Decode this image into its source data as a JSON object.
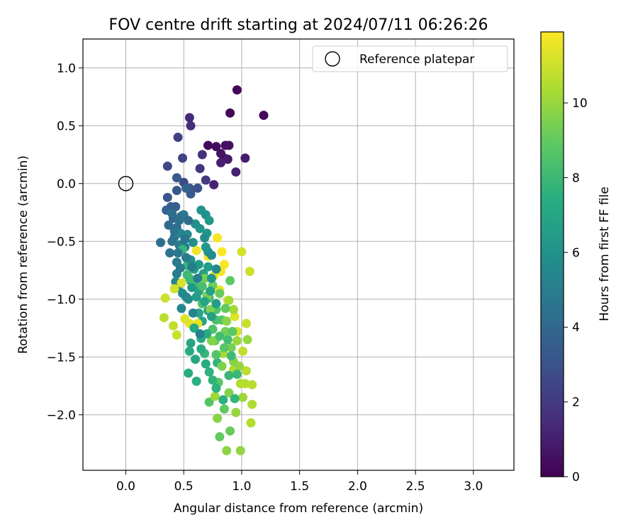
{
  "chart_data": {
    "type": "scatter",
    "title": "FOV centre drift starting at 2024/07/11 06:26:26",
    "xlabel": "Angular distance from reference (arcmin)",
    "ylabel": "Rotation from reference (arcmin)",
    "xlim": [
      -0.37,
      3.35
    ],
    "ylim": [
      -2.48,
      1.25
    ],
    "xticks": [
      0.0,
      0.5,
      1.0,
      1.5,
      2.0,
      2.5,
      3.0
    ],
    "xtick_labels": [
      "0.0",
      "0.5",
      "1.0",
      "1.5",
      "2.0",
      "2.5",
      "3.0"
    ],
    "yticks": [
      1.0,
      0.5,
      0.0,
      -0.5,
      -1.0,
      -1.5,
      -2.0
    ],
    "ytick_labels": [
      "1.0",
      "0.5",
      "0.0",
      "−0.5",
      "−1.0",
      "−1.5",
      "−2.0"
    ],
    "grid": true,
    "legend": {
      "position": "top-right",
      "label": "Reference platepar",
      "marker": "open-circle"
    },
    "colorbar": {
      "label": "Hours from first FF file",
      "range": [
        0,
        11.9
      ],
      "ticks": [
        0,
        2,
        4,
        6,
        8,
        10
      ],
      "tick_labels": [
        "0",
        "2",
        "4",
        "6",
        "8",
        "10"
      ],
      "colormap": "viridis"
    },
    "reference": {
      "x": 0.0,
      "y": 0.0
    },
    "series": [
      {
        "points": [
          [
            0.96,
            0.81,
            0.1
          ],
          [
            0.9,
            0.61,
            0.2
          ],
          [
            1.19,
            0.59,
            0.2
          ],
          [
            0.71,
            0.33,
            0.3
          ],
          [
            0.78,
            0.32,
            0.4
          ],
          [
            0.86,
            0.33,
            0.5
          ],
          [
            0.89,
            0.33,
            0.5
          ],
          [
            0.82,
            0.26,
            0.6
          ],
          [
            0.85,
            0.22,
            0.7
          ],
          [
            0.88,
            0.21,
            0.8
          ],
          [
            1.03,
            0.22,
            0.9
          ],
          [
            0.82,
            0.18,
            1.0
          ],
          [
            0.95,
            0.1,
            1.1
          ],
          [
            0.76,
            -0.01,
            1.2
          ],
          [
            0.55,
            0.57,
            1.4
          ],
          [
            0.56,
            0.5,
            1.5
          ],
          [
            0.66,
            0.25,
            1.6
          ],
          [
            0.64,
            0.13,
            1.8
          ],
          [
            0.69,
            0.03,
            2.0
          ],
          [
            0.45,
            0.4,
            2.2
          ],
          [
            0.49,
            0.22,
            2.4
          ],
          [
            0.36,
            0.15,
            2.5
          ],
          [
            0.5,
            0.01,
            2.7
          ],
          [
            0.62,
            -0.04,
            2.9
          ],
          [
            0.55,
            -0.04,
            3.0
          ],
          [
            0.36,
            -0.12,
            3.1
          ],
          [
            0.44,
            -0.06,
            3.2
          ],
          [
            0.56,
            -0.09,
            3.3
          ],
          [
            0.44,
            0.05,
            3.4
          ],
          [
            0.39,
            -0.2,
            3.5
          ],
          [
            0.43,
            -0.2,
            3.6
          ],
          [
            0.52,
            -0.04,
            3.7
          ],
          [
            0.35,
            -0.23,
            3.8
          ],
          [
            0.41,
            -0.3,
            3.9
          ],
          [
            0.48,
            -0.28,
            4.0
          ],
          [
            0.37,
            -0.36,
            4.1
          ],
          [
            0.44,
            -0.38,
            4.2
          ],
          [
            0.3,
            -0.51,
            4.3
          ],
          [
            0.4,
            -0.5,
            4.4
          ],
          [
            0.38,
            -0.6,
            4.5
          ],
          [
            0.42,
            -0.46,
            4.6
          ],
          [
            0.5,
            -0.27,
            4.7
          ],
          [
            0.44,
            -0.68,
            4.8
          ],
          [
            0.46,
            -0.53,
            4.9
          ],
          [
            0.51,
            -0.55,
            5.0
          ],
          [
            0.44,
            -0.78,
            5.1
          ],
          [
            0.45,
            -0.9,
            5.2
          ],
          [
            0.43,
            -0.85,
            5.3
          ],
          [
            0.47,
            -0.43,
            5.4
          ],
          [
            0.53,
            -0.44,
            5.5
          ],
          [
            0.56,
            -0.84,
            5.6
          ],
          [
            0.49,
            -0.95,
            5.7
          ],
          [
            0.54,
            -1.0,
            5.8
          ],
          [
            0.58,
            -0.51,
            5.9
          ],
          [
            0.65,
            -0.23,
            6.0
          ],
          [
            0.69,
            -0.27,
            6.0
          ],
          [
            0.64,
            -0.39,
            6.1
          ],
          [
            0.7,
            -0.43,
            6.2
          ],
          [
            0.72,
            -0.32,
            6.3
          ],
          [
            0.69,
            -0.55,
            6.4
          ],
          [
            0.59,
            -0.74,
            6.5
          ],
          [
            0.67,
            -0.78,
            6.6
          ],
          [
            0.71,
            -0.72,
            6.6
          ],
          [
            0.63,
            -0.93,
            6.7
          ],
          [
            0.71,
            -1.1,
            6.8
          ],
          [
            0.66,
            -1.19,
            6.9
          ],
          [
            0.56,
            -1.38,
            7.0
          ],
          [
            0.6,
            -1.52,
            7.1
          ],
          [
            0.65,
            -1.34,
            7.2
          ],
          [
            0.55,
            -1.45,
            7.3
          ],
          [
            0.54,
            -1.64,
            7.4
          ],
          [
            0.61,
            -1.71,
            7.5
          ],
          [
            0.72,
            -1.63,
            7.6
          ],
          [
            0.79,
            -1.55,
            7.7
          ],
          [
            0.68,
            -1.47,
            7.8
          ],
          [
            0.49,
            -0.57,
            7.8
          ],
          [
            0.53,
            -0.71,
            7.9
          ],
          [
            0.53,
            -0.79,
            8.0
          ],
          [
            0.55,
            -0.82,
            8.1
          ],
          [
            0.59,
            -0.87,
            8.2
          ],
          [
            0.66,
            -0.89,
            8.3
          ],
          [
            0.72,
            -0.99,
            8.4
          ],
          [
            0.66,
            -1.04,
            8.5
          ],
          [
            0.78,
            -1.09,
            8.5
          ],
          [
            0.83,
            -1.18,
            8.6
          ],
          [
            0.72,
            -1.89,
            8.7
          ],
          [
            0.8,
            -1.72,
            8.8
          ],
          [
            0.85,
            -1.95,
            8.9
          ],
          [
            0.81,
            -2.19,
            9.0
          ],
          [
            0.9,
            -2.14,
            9.1
          ],
          [
            0.77,
            -1.36,
            9.2
          ],
          [
            0.86,
            -1.28,
            9.3
          ],
          [
            0.91,
            -1.42,
            9.4
          ],
          [
            0.83,
            -1.58,
            9.5
          ],
          [
            0.89,
            -1.81,
            9.6
          ],
          [
            0.79,
            -2.03,
            9.7
          ],
          [
            0.87,
            -2.31,
            9.8
          ],
          [
            0.99,
            -2.31,
            9.9
          ],
          [
            0.95,
            -1.98,
            10.0
          ],
          [
            1.01,
            -1.85,
            10.1
          ],
          [
            0.77,
            -1.84,
            10.2
          ],
          [
            0.84,
            -1.47,
            10.3
          ],
          [
            0.93,
            -1.61,
            10.4
          ],
          [
            0.99,
            -1.73,
            10.5
          ],
          [
            1.03,
            -1.73,
            10.6
          ],
          [
            0.33,
            -1.16,
            10.7
          ],
          [
            0.41,
            -1.23,
            10.8
          ],
          [
            0.44,
            -1.31,
            10.9
          ],
          [
            0.34,
            -0.99,
            11.0
          ],
          [
            0.42,
            -0.91,
            11.1
          ],
          [
            0.48,
            -0.86,
            11.2
          ],
          [
            0.51,
            -1.17,
            11.3
          ],
          [
            0.55,
            -1.21,
            11.4
          ],
          [
            0.62,
            -1.21,
            11.5
          ],
          [
            0.61,
            -0.58,
            11.6
          ],
          [
            0.71,
            -0.63,
            11.7
          ],
          [
            0.79,
            -0.47,
            11.8
          ],
          [
            0.83,
            -0.59,
            11.9
          ],
          [
            0.85,
            -0.7,
            11.8
          ],
          [
            0.82,
            -0.76,
            11.7
          ],
          [
            0.76,
            -0.8,
            11.6
          ],
          [
            0.81,
            -0.92,
            11.5
          ],
          [
            0.88,
            -1.01,
            11.4
          ],
          [
            0.94,
            -1.15,
            11.3
          ],
          [
            0.96,
            -1.28,
            11.2
          ],
          [
            1.0,
            -0.59,
            11.1
          ],
          [
            1.07,
            -0.76,
            11.0
          ],
          [
            1.04,
            -1.21,
            10.9
          ],
          [
            1.01,
            -1.45,
            10.8
          ],
          [
            1.04,
            -1.62,
            10.7
          ],
          [
            1.09,
            -1.74,
            10.6
          ],
          [
            1.08,
            -2.07,
            10.5
          ],
          [
            1.09,
            -1.91,
            10.4
          ],
          [
            0.89,
            -1.01,
            10.3
          ],
          [
            0.93,
            -1.09,
            10.2
          ],
          [
            0.96,
            -1.36,
            10.1
          ],
          [
            1.05,
            -1.35,
            10.0
          ],
          [
            0.98,
            -1.58,
            9.9
          ],
          [
            0.87,
            -1.19,
            9.8
          ],
          [
            0.93,
            -1.54,
            9.7
          ],
          [
            0.74,
            -1.36,
            9.6
          ],
          [
            0.73,
            -1.09,
            9.5
          ],
          [
            0.7,
            -0.97,
            9.4
          ],
          [
            0.68,
            -0.82,
            9.3
          ],
          [
            0.75,
            -0.88,
            9.2
          ],
          [
            0.81,
            -0.95,
            9.1
          ],
          [
            0.86,
            -1.08,
            9.0
          ],
          [
            0.9,
            -0.84,
            8.9
          ],
          [
            0.92,
            -1.28,
            8.8
          ],
          [
            0.85,
            -1.42,
            8.7
          ],
          [
            0.78,
            -1.48,
            8.6
          ],
          [
            0.75,
            -1.26,
            8.5
          ],
          [
            0.78,
            -1.18,
            8.4
          ],
          [
            0.81,
            -1.32,
            8.3
          ],
          [
            0.88,
            -1.35,
            8.2
          ],
          [
            0.91,
            -1.49,
            8.1
          ],
          [
            0.96,
            -1.65,
            8.0
          ],
          [
            0.89,
            -1.66,
            7.9
          ],
          [
            0.94,
            -1.86,
            7.8
          ],
          [
            0.75,
            -1.7,
            7.7
          ],
          [
            0.78,
            -1.77,
            7.6
          ],
          [
            0.84,
            -1.87,
            7.5
          ],
          [
            0.69,
            -1.56,
            7.4
          ],
          [
            0.65,
            -1.43,
            7.3
          ],
          [
            0.7,
            -1.3,
            7.2
          ],
          [
            0.59,
            -1.25,
            7.1
          ],
          [
            0.63,
            -1.12,
            7.0
          ],
          [
            0.68,
            -1.02,
            6.9
          ],
          [
            0.73,
            -0.93,
            6.8
          ],
          [
            0.74,
            -1.15,
            6.7
          ],
          [
            0.78,
            -1.04,
            6.6
          ],
          [
            0.61,
            -0.98,
            6.5
          ],
          [
            0.57,
            -0.9,
            6.4
          ],
          [
            0.63,
            -0.7,
            6.3
          ],
          [
            0.74,
            -0.82,
            6.2
          ],
          [
            0.71,
            -0.59,
            6.1
          ],
          [
            0.56,
            -0.66,
            6.0
          ],
          [
            0.6,
            -0.35,
            5.9
          ],
          [
            0.68,
            -0.47,
            5.8
          ],
          [
            0.74,
            -0.62,
            5.7
          ],
          [
            0.78,
            -0.74,
            5.6
          ],
          [
            0.52,
            -0.98,
            5.5
          ],
          [
            0.48,
            -1.08,
            5.4
          ],
          [
            0.58,
            -1.12,
            5.3
          ],
          [
            0.64,
            -1.3,
            5.2
          ],
          [
            0.62,
            -0.82,
            5.1
          ],
          [
            0.57,
            -0.72,
            5.0
          ],
          [
            0.52,
            -0.64,
            4.9
          ],
          [
            0.47,
            -0.73,
            4.8
          ],
          [
            0.45,
            -0.6,
            4.7
          ],
          [
            0.51,
            -0.48,
            4.6
          ],
          [
            0.42,
            -0.41,
            4.5
          ],
          [
            0.46,
            -0.32,
            4.4
          ],
          [
            0.4,
            -0.26,
            4.3
          ],
          [
            0.54,
            -0.32,
            4.2
          ]
        ]
      }
    ]
  }
}
